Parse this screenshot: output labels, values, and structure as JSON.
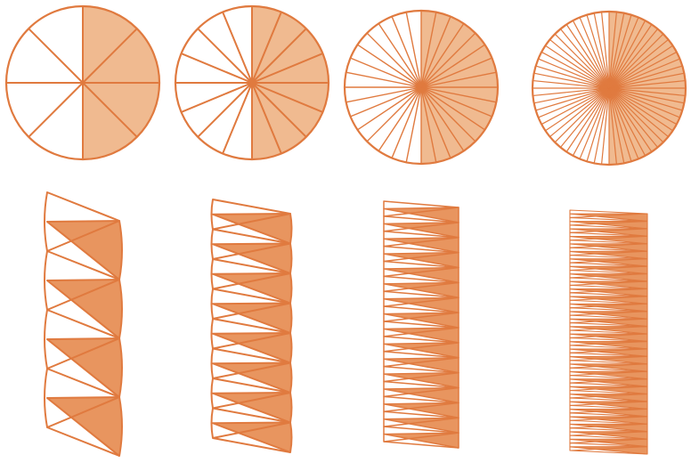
{
  "colors": {
    "stroke": "#e07a3f",
    "fill": "#f0ba90",
    "wedge_fill": "#e8955f",
    "background": "#ffffff"
  },
  "diagrams": [
    {
      "name": "circle-8-sectors",
      "sectors": 8,
      "shaded": "right-half"
    },
    {
      "name": "circle-16-sectors",
      "sectors": 16,
      "shaded": "right-half"
    },
    {
      "name": "circle-32-sectors",
      "sectors": 32,
      "shaded": "right-half"
    },
    {
      "name": "circle-64-sectors",
      "sectors": 64,
      "shaded": "right-half"
    },
    {
      "name": "rearranged-8-sectors",
      "sectors": 8,
      "shaded": "alternate-wedges"
    },
    {
      "name": "rearranged-16-sectors",
      "sectors": 16,
      "shaded": "alternate-wedges"
    },
    {
      "name": "rearranged-32-sectors",
      "sectors": 32,
      "shaded": "alternate-wedges"
    },
    {
      "name": "rearranged-64-sectors",
      "sectors": 64,
      "shaded": "alternate-wedges"
    }
  ]
}
